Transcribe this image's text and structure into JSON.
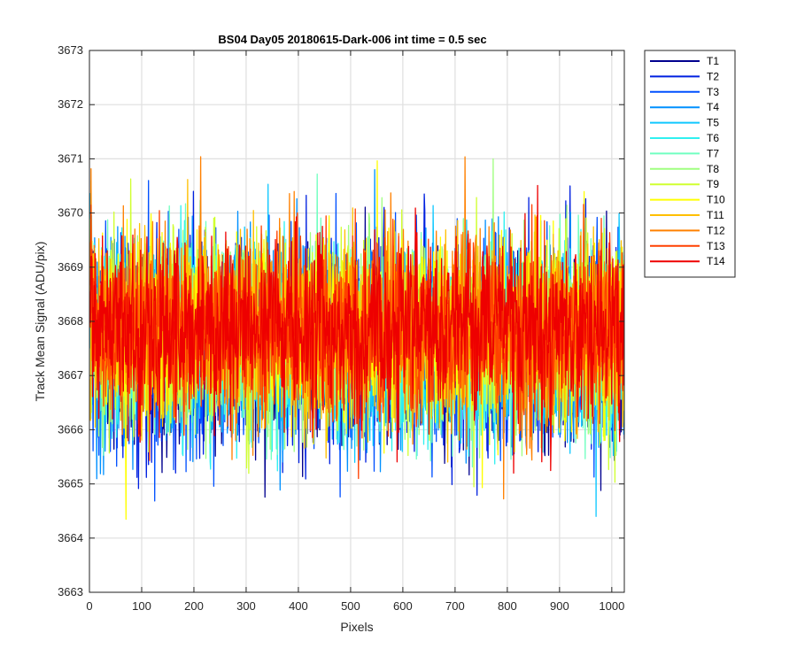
{
  "chart_data": {
    "type": "line",
    "title": "BS04 Day05 20180615-Dark-006 int time = 0.5 sec",
    "xlabel": "Pixels",
    "ylabel": "Track Mean Signal (ADU/pix)",
    "xlim": [
      0,
      1024
    ],
    "ylim": [
      3663,
      3673
    ],
    "xticks": [
      0,
      100,
      200,
      300,
      400,
      500,
      600,
      700,
      800,
      900,
      1000
    ],
    "yticks": [
      3663,
      3664,
      3665,
      3666,
      3667,
      3668,
      3669,
      3670,
      3671,
      3672,
      3673
    ],
    "grid": true,
    "legend_position": "outside-top-right",
    "n_points": 1024,
    "series": [
      {
        "name": "T1",
        "color": "#00008f",
        "mean": 3667.45,
        "std": 0.95,
        "min": 3663.56,
        "max": 3670.5
      },
      {
        "name": "T2",
        "color": "#0020e0",
        "mean": 3667.5,
        "std": 0.95,
        "min": 3663.6,
        "max": 3670.5
      },
      {
        "name": "T3",
        "color": "#0050ff",
        "mean": 3667.55,
        "std": 0.92,
        "min": 3664.0,
        "max": 3670.6
      },
      {
        "name": "T4",
        "color": "#0090ff",
        "mean": 3667.6,
        "std": 0.9,
        "min": 3664.3,
        "max": 3670.8
      },
      {
        "name": "T5",
        "color": "#10c8ff",
        "mean": 3667.65,
        "std": 0.9,
        "min": 3664.4,
        "max": 3671.1
      },
      {
        "name": "T6",
        "color": "#30f0f0",
        "mean": 3667.65,
        "std": 0.88,
        "min": 3664.0,
        "max": 3671.2
      },
      {
        "name": "T7",
        "color": "#70ffc0",
        "mean": 3667.7,
        "std": 0.85,
        "min": 3664.5,
        "max": 3671.0
      },
      {
        "name": "T8",
        "color": "#a0ff80",
        "mean": 3667.7,
        "std": 0.85,
        "min": 3664.5,
        "max": 3671.0
      },
      {
        "name": "T9",
        "color": "#d0ff30",
        "mean": 3667.75,
        "std": 0.85,
        "min": 3664.1,
        "max": 3671.1
      },
      {
        "name": "T10",
        "color": "#ffff00",
        "mean": 3667.8,
        "std": 0.85,
        "min": 3664.0,
        "max": 3671.5
      },
      {
        "name": "T11",
        "color": "#ffbf00",
        "mean": 3667.8,
        "std": 0.85,
        "min": 3664.5,
        "max": 3672.1
      },
      {
        "name": "T12",
        "color": "#ff8000",
        "mean": 3667.85,
        "std": 0.85,
        "min": 3664.1,
        "max": 3671.5
      },
      {
        "name": "T13",
        "color": "#ff4000",
        "mean": 3667.85,
        "std": 0.8,
        "min": 3665.1,
        "max": 3671.0
      },
      {
        "name": "T14",
        "color": "#ee0000",
        "mean": 3667.9,
        "std": 0.8,
        "min": 3665.2,
        "max": 3671.0
      }
    ]
  }
}
